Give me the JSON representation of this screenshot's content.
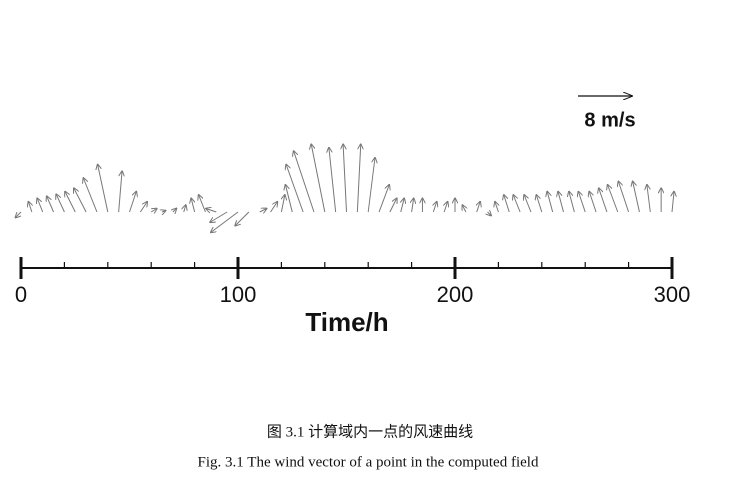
{
  "chart_data": {
    "type": "quiver",
    "x": [
      0,
      5,
      10,
      15,
      20,
      25,
      30,
      35,
      40,
      45,
      50,
      55,
      60,
      65,
      70,
      75,
      80,
      85,
      90,
      95,
      100,
      105,
      110,
      115,
      120,
      125,
      130,
      135,
      140,
      145,
      150,
      155,
      160,
      165,
      170,
      175,
      180,
      185,
      190,
      195,
      200,
      205,
      210,
      215,
      220,
      225,
      230,
      235,
      240,
      245,
      250,
      255,
      260,
      265,
      270,
      275,
      280,
      285,
      290,
      295,
      300
    ],
    "u": [
      -0.8,
      -0.5,
      -0.8,
      -1,
      -1.2,
      -1.5,
      -1.8,
      -2,
      -1.5,
      0.5,
      1,
      1,
      0.8,
      0.5,
      0.5,
      0.3,
      -0.5,
      -1,
      -1.5,
      -2.5,
      -4,
      -2,
      1,
      1,
      0.5,
      -1,
      -2.5,
      -3,
      -2,
      -1,
      -0.5,
      0.5,
      1,
      1.5,
      1,
      0.5,
      0.3,
      0,
      0.5,
      0.5,
      0,
      -0.5,
      0.5,
      0.5,
      -0.5,
      -0.8,
      -1,
      -1,
      -0.8,
      -0.8,
      -0.8,
      -0.8,
      -1,
      -1,
      -1.2,
      -1.5,
      -1.5,
      -1,
      -0.5,
      0,
      0.3
    ],
    "v": [
      -0.8,
      1.5,
      2,
      2.3,
      2.6,
      3,
      3.5,
      5,
      7,
      6,
      3,
      1.5,
      0.5,
      0.2,
      0.5,
      1,
      2,
      2.5,
      0.5,
      -1.5,
      -3,
      -2,
      0.5,
      1.5,
      2.5,
      4,
      7,
      9,
      10,
      9.5,
      10,
      10,
      8,
      4,
      2,
      2,
      2,
      2,
      1.5,
      1.5,
      2,
      1,
      1.5,
      -0.5,
      1.5,
      2.5,
      2.5,
      2.5,
      2.5,
      3,
      3,
      3,
      3,
      3,
      3.5,
      4,
      4.5,
      4.5,
      4,
      3.5,
      3
    ],
    "xlim": [
      0,
      300
    ],
    "xticks": [
      0,
      100,
      200,
      300
    ],
    "minor_xticks": [
      20,
      40,
      60,
      80,
      120,
      140,
      160,
      180,
      220,
      240,
      260,
      280
    ],
    "xlabel": "Time/h",
    "reference_speed": 8,
    "reference_label": "8 m/s",
    "color": "#777777"
  },
  "caption": {
    "chinese": "图 3.1  计算域内一点的风速曲线",
    "english": "Fig. 3.1 The wind vector of a point in the computed field"
  }
}
